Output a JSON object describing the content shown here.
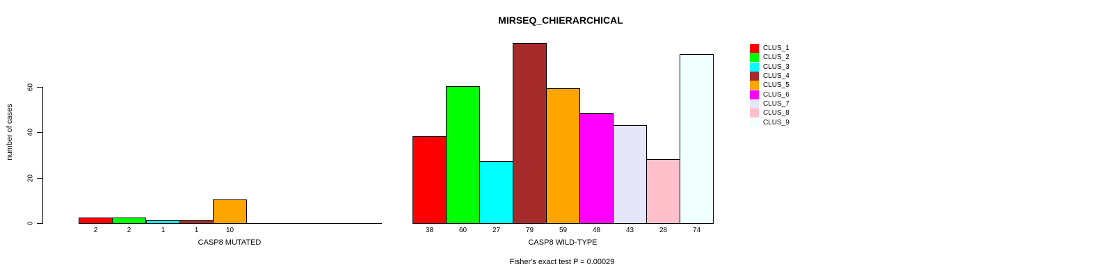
{
  "title": "MIRSEQ_CHIERARCHICAL",
  "y_axis": {
    "label": "number of cases",
    "tick_labels": [
      "0",
      "20",
      "40",
      "60"
    ]
  },
  "footer_caption": "Fisher's exact test P = 0.00029",
  "chart_data": {
    "type": "bar",
    "title": "MIRSEQ_CHIERARCHICAL",
    "xlabel": "",
    "ylabel": "number of cases",
    "ylim": [
      0,
      80
    ],
    "yticks": [
      0,
      20,
      40,
      60
    ],
    "grid": false,
    "legend_position": "top-right",
    "legend_entries": [
      "CLUS_1",
      "CLUS_2",
      "CLUS_3",
      "CLUS_4",
      "CLUS_5",
      "CLUS_6",
      "CLUS_7",
      "CLUS_8",
      "CLUS_9"
    ],
    "colors": [
      "#ff0000",
      "#00ff00",
      "#00ffff",
      "#a52a2a",
      "#ffa500",
      "#ff00ff",
      "#e6e6fa",
      "#ffc0cb",
      "#f0ffff"
    ],
    "bar_border_color": "#000000",
    "groups": [
      {
        "label": "CASP8 MUTATED",
        "values": [
          2,
          2,
          1,
          1,
          10,
          0,
          0,
          0,
          0
        ]
      },
      {
        "label": "CASP8 WILD-TYPE",
        "values": [
          38,
          60,
          27,
          79,
          59,
          48,
          43,
          28,
          74
        ]
      }
    ],
    "bar_value_labels_hidden_when_zero": true,
    "annotation": "Fisher's exact test P = 0.00029"
  }
}
